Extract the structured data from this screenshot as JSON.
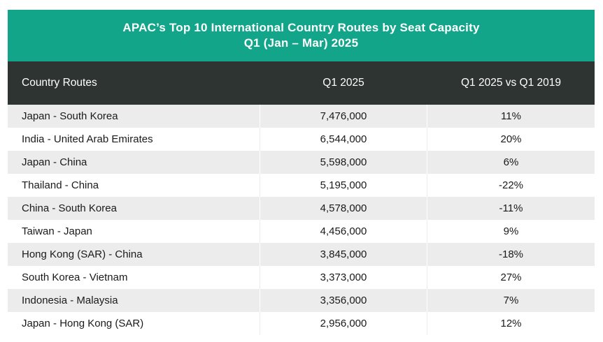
{
  "chart_data": {
    "type": "table",
    "title": "APAC’s Top 10 International Country Routes by Seat Capacity",
    "subtitle": "Q1 (Jan – Mar) 2025",
    "columns": [
      "Country Routes",
      "Q1 2025",
      "Q1 2025 vs Q1 2019"
    ],
    "rows": [
      {
        "route": "Japan - South Korea",
        "q1_2025": "7,476,000",
        "vs_2019": "11%"
      },
      {
        "route": "India - United Arab Emirates",
        "q1_2025": "6,544,000",
        "vs_2019": "20%"
      },
      {
        "route": "Japan - China",
        "q1_2025": "5,598,000",
        "vs_2019": "6%"
      },
      {
        "route": "Thailand - China",
        "q1_2025": "5,195,000",
        "vs_2019": "-22%"
      },
      {
        "route": "China - South Korea",
        "q1_2025": "4,578,000",
        "vs_2019": "-11%"
      },
      {
        "route": "Taiwan - Japan",
        "q1_2025": "4,456,000",
        "vs_2019": "9%"
      },
      {
        "route": "Hong Kong (SAR) - China",
        "q1_2025": "3,845,000",
        "vs_2019": "-18%"
      },
      {
        "route": "South Korea - Vietnam",
        "q1_2025": "3,373,000",
        "vs_2019": "27%"
      },
      {
        "route": "Indonesia - Malaysia",
        "q1_2025": "3,356,000",
        "vs_2019": "7%"
      },
      {
        "route": "Japan - Hong Kong (SAR)",
        "q1_2025": "2,956,000",
        "vs_2019": "12%"
      }
    ],
    "colors": {
      "title_bg": "#12a58a",
      "header_bg": "#2e3431",
      "stripe": "#ececec"
    }
  }
}
